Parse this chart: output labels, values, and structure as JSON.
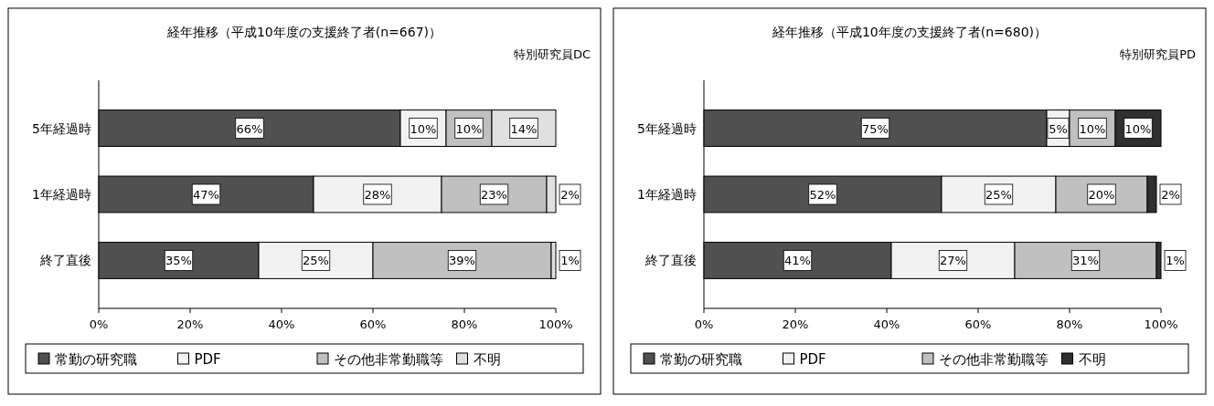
{
  "chart_data": [
    {
      "type": "bar",
      "orientation": "horizontal",
      "stacked": true,
      "title": "経年推移（平成10年度の支援終了者(n=667)）",
      "subtitle": "特別研究員DC",
      "categories": [
        "5年経過時",
        "1年経過時",
        "終了直後"
      ],
      "xlim": [
        0,
        100
      ],
      "xticks": [
        {
          "value": 0,
          "label": "0%"
        },
        {
          "value": 20,
          "label": "20%"
        },
        {
          "value": 40,
          "label": "40%"
        },
        {
          "value": 60,
          "label": "60%"
        },
        {
          "value": 80,
          "label": "80%"
        },
        {
          "value": 100,
          "label": "100%"
        }
      ],
      "legend": "bottom",
      "series": [
        {
          "name": "常勤の研究職",
          "color": "#505050",
          "values": [
            66,
            47,
            35
          ],
          "value_labels": [
            "66%",
            "47%",
            "35%"
          ]
        },
        {
          "name": "PDF",
          "color": "#f2f2f2",
          "values": [
            10,
            28,
            25
          ],
          "value_labels": [
            "10%",
            "28%",
            "25%"
          ]
        },
        {
          "name": "その他非常勤職等",
          "color": "#c0c0c0",
          "values": [
            10,
            23,
            39
          ],
          "value_labels": [
            "10%",
            "23%",
            "39%"
          ]
        },
        {
          "name": "不明",
          "color": "#e0e0e0",
          "values": [
            14,
            2,
            1
          ],
          "value_labels": [
            "14%",
            "2%",
            "1%"
          ]
        }
      ]
    },
    {
      "type": "bar",
      "orientation": "horizontal",
      "stacked": true,
      "title": "経年推移（平成10年度の支援終了者(n=680)）",
      "subtitle": "特別研究員PD",
      "categories": [
        "5年経過時",
        "1年経過時",
        "終了直後"
      ],
      "xlim": [
        0,
        100
      ],
      "xticks": [
        {
          "value": 0,
          "label": "0%"
        },
        {
          "value": 20,
          "label": "20%"
        },
        {
          "value": 40,
          "label": "40%"
        },
        {
          "value": 60,
          "label": "60%"
        },
        {
          "value": 80,
          "label": "80%"
        },
        {
          "value": 100,
          "label": "100%"
        }
      ],
      "legend": "bottom",
      "series": [
        {
          "name": "常勤の研究職",
          "color": "#505050",
          "values": [
            75,
            52,
            41
          ],
          "value_labels": [
            "75%",
            "52%",
            "41%"
          ]
        },
        {
          "name": "PDF",
          "color": "#f2f2f2",
          "values": [
            5,
            25,
            27
          ],
          "value_labels": [
            "5%",
            "25%",
            "27%"
          ]
        },
        {
          "name": "その他非常勤職等",
          "color": "#c0c0c0",
          "values": [
            10,
            20,
            31
          ],
          "value_labels": [
            "10%",
            "20%",
            "31%"
          ]
        },
        {
          "name": "不明",
          "color": "#303030",
          "values": [
            10,
            2,
            1
          ],
          "value_labels": [
            "10%",
            "2%",
            "1%"
          ]
        }
      ]
    }
  ]
}
